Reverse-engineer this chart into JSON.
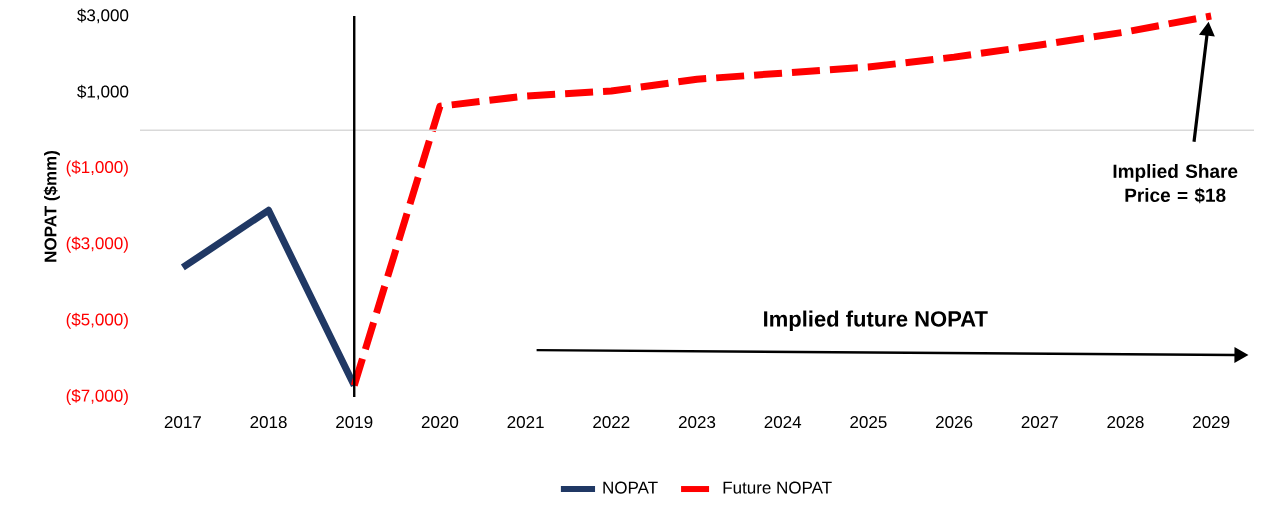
{
  "chart_data": {
    "type": "line",
    "ylabel": "NOPAT ($mm)",
    "categories": [
      "2017",
      "2018",
      "2019",
      "2020",
      "2021",
      "2022",
      "2023",
      "2024",
      "2025",
      "2026",
      "2027",
      "2028",
      "2029"
    ],
    "series": [
      {
        "name": "NOPAT",
        "color": "#203864",
        "line_style": "solid",
        "values": [
          -3600,
          -2100,
          -6700,
          null,
          null,
          null,
          null,
          null,
          null,
          null,
          null,
          null,
          null
        ]
      },
      {
        "name": "Future NOPAT",
        "color": "#ff0000",
        "line_style": "dashed",
        "values": [
          null,
          null,
          -6700,
          630,
          900,
          1030,
          1340,
          1500,
          1660,
          1920,
          2240,
          2580,
          3000
        ]
      }
    ],
    "ylim": [
      -7000,
      3000
    ],
    "yticks": [
      {
        "value": -7000,
        "label": "($7,000)"
      },
      {
        "value": -5000,
        "label": "($5,000)"
      },
      {
        "value": -3000,
        "label": "($3,000)"
      },
      {
        "value": -1000,
        "label": "($1,000)"
      },
      {
        "value": 1000,
        "label": "$1,000"
      },
      {
        "value": 3000,
        "label": "$3,000"
      }
    ],
    "ref_lines": [
      {
        "axis": "y",
        "value": 0,
        "color": "#d9d9d9"
      },
      {
        "axis": "x",
        "value": "2019",
        "color": "#000000"
      }
    ],
    "annotations": [
      "Implied Share Price = $18",
      "Implied future NOPAT"
    ],
    "legend": "bottom",
    "marker": "none"
  }
}
